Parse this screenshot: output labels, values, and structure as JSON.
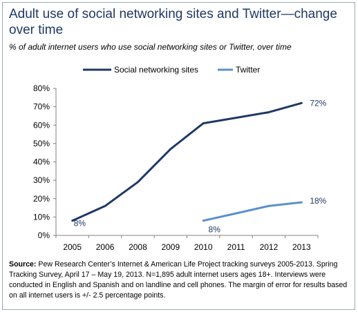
{
  "title": "Adult use of social networking sites and Twitter—change over time",
  "subtitle": "% of adult internet users who use social networking sites or Twitter, over time",
  "source_label": "Source:",
  "source_text": "Pew Research Center’s Internet & American Life Project tracking surveys 2005-2013. Spring Tracking Survey, April 17 – May 19, 2013. N=1,895 adult internet users ages 18+. Interviews were conducted in English and Spanish and on landline and cell phones.  The margin of error for results based on all internet users is +/- 2.5 percentage points.",
  "colors": {
    "social": "#1f3864",
    "twitter": "#5b8fd0",
    "axis": "#808080",
    "label": "#1f3864"
  },
  "chart_data": {
    "type": "line",
    "categories": [
      "2005",
      "2006",
      "2008",
      "2009",
      "2010",
      "2011",
      "2012",
      "2013"
    ],
    "ylim": [
      0,
      80
    ],
    "yticks": [
      "0%",
      "10%",
      "20%",
      "30%",
      "40%",
      "50%",
      "60%",
      "70%",
      "80%"
    ],
    "grid": false,
    "legend_position": "top",
    "series": [
      {
        "name": "Social networking sites",
        "values": [
          8,
          16,
          29,
          47,
          61,
          64,
          67,
          72
        ],
        "labels": [
          {
            "index": 0,
            "text": "8%"
          },
          {
            "index": 7,
            "text": "72%"
          }
        ]
      },
      {
        "name": "Twitter",
        "values": [
          null,
          null,
          null,
          null,
          8,
          12,
          16,
          18
        ],
        "labels": [
          {
            "index": 4,
            "text": "8%"
          },
          {
            "index": 7,
            "text": "18%"
          }
        ]
      }
    ]
  }
}
